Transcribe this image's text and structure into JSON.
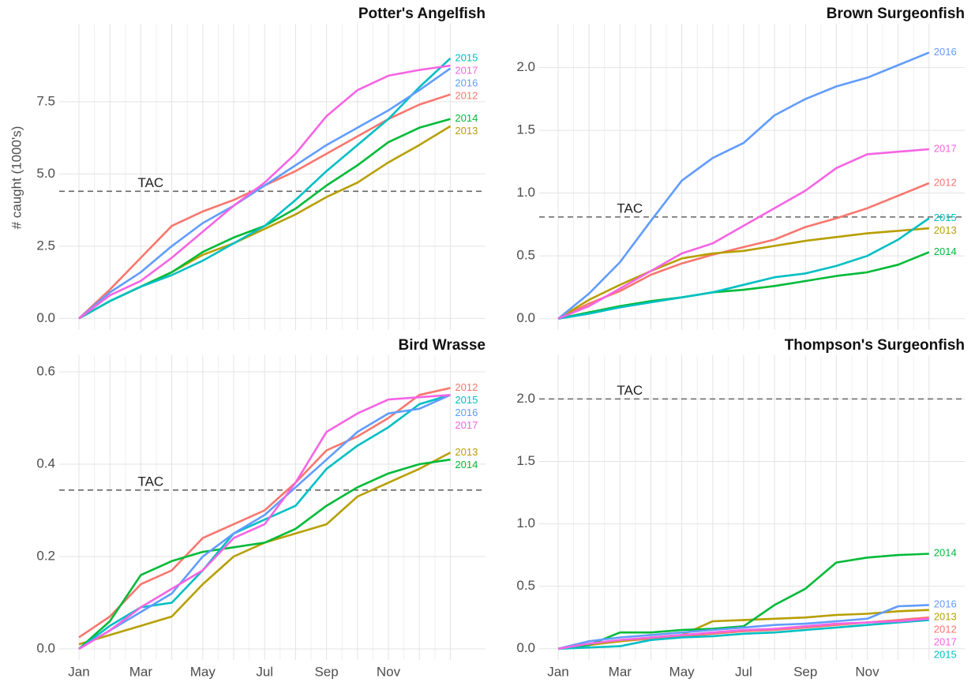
{
  "chart_data": [
    {
      "type": "line",
      "title": "Potter's Angelfish",
      "y_label": "# caught (1000's)",
      "categories": [
        null,
        null,
        null,
        null,
        null,
        null,
        null,
        null,
        null,
        null,
        null,
        null,
        null
      ],
      "ylim": [
        -0.4,
        10.2
      ],
      "yticks": [
        {
          "value": 0,
          "label": "0.0"
        },
        {
          "value": 2.5,
          "label": "2.5"
        },
        {
          "value": 5,
          "label": "5.0"
        },
        {
          "value": 7.5,
          "label": "7.5"
        }
      ],
      "grid": true,
      "tac": {
        "label": "TAC",
        "value": 4.4
      },
      "series": [
        {
          "name": "2012",
          "color": "#F8766D",
          "values": [
            0,
            1.0,
            2.1,
            3.2,
            3.7,
            4.1,
            4.6,
            5.1,
            5.7,
            6.3,
            6.9,
            7.4,
            7.75
          ]
        },
        {
          "name": "2013",
          "color": "#B79F00",
          "values": [
            0,
            0.6,
            1.1,
            1.6,
            2.2,
            2.6,
            3.1,
            3.6,
            4.2,
            4.7,
            5.4,
            6.0,
            6.65
          ]
        },
        {
          "name": "2014",
          "color": "#00BA38",
          "values": [
            0,
            0.6,
            1.1,
            1.6,
            2.3,
            2.8,
            3.2,
            3.8,
            4.6,
            5.3,
            6.1,
            6.6,
            6.9
          ]
        },
        {
          "name": "2015",
          "color": "#00BFC4",
          "values": [
            0,
            0.6,
            1.1,
            1.5,
            2.0,
            2.6,
            3.2,
            4.1,
            5.1,
            6.0,
            6.9,
            8.0,
            9.0
          ]
        },
        {
          "name": "2016",
          "color": "#619CFF",
          "values": [
            0,
            0.9,
            1.6,
            2.5,
            3.3,
            3.9,
            4.6,
            5.3,
            6.0,
            6.6,
            7.2,
            7.9,
            8.65
          ]
        },
        {
          "name": "2017",
          "color": "#F564E3",
          "values": [
            0,
            0.8,
            1.3,
            2.1,
            3.0,
            3.9,
            4.7,
            5.7,
            7.0,
            7.9,
            8.4,
            8.6,
            8.75
          ]
        }
      ]
    },
    {
      "type": "line",
      "title": "Brown Surgeonfish",
      "categories": [
        null,
        null,
        null,
        null,
        null,
        null,
        null,
        null,
        null,
        null,
        null,
        null,
        null
      ],
      "ylim": [
        -0.09,
        2.35
      ],
      "yticks": [
        {
          "value": 0,
          "label": "0.0"
        },
        {
          "value": 0.5,
          "label": "0.5"
        },
        {
          "value": 1,
          "label": "1.0"
        },
        {
          "value": 1.5,
          "label": "1.5"
        },
        {
          "value": 2,
          "label": "2.0"
        }
      ],
      "grid": true,
      "tac": {
        "label": "TAC",
        "value": 0.81
      },
      "series": [
        {
          "name": "2012",
          "color": "#F8766D",
          "values": [
            0,
            0.12,
            0.22,
            0.35,
            0.44,
            0.51,
            0.57,
            0.63,
            0.73,
            0.8,
            0.88,
            0.98,
            1.08
          ]
        },
        {
          "name": "2013",
          "color": "#B79F00",
          "values": [
            0,
            0.15,
            0.27,
            0.38,
            0.48,
            0.52,
            0.54,
            0.58,
            0.62,
            0.65,
            0.68,
            0.7,
            0.72
          ]
        },
        {
          "name": "2014",
          "color": "#00BA38",
          "values": [
            0,
            0.05,
            0.1,
            0.14,
            0.17,
            0.21,
            0.23,
            0.26,
            0.3,
            0.34,
            0.37,
            0.43,
            0.53
          ]
        },
        {
          "name": "2015",
          "color": "#00BFC4",
          "values": [
            0,
            0.04,
            0.09,
            0.13,
            0.17,
            0.21,
            0.27,
            0.33,
            0.36,
            0.42,
            0.5,
            0.63,
            0.8
          ]
        },
        {
          "name": "2016",
          "color": "#619CFF",
          "values": [
            0,
            0.2,
            0.45,
            0.78,
            1.1,
            1.28,
            1.4,
            1.62,
            1.75,
            1.85,
            1.92,
            2.02,
            2.12
          ]
        },
        {
          "name": "2017",
          "color": "#F564E3",
          "values": [
            0,
            0.1,
            0.24,
            0.38,
            0.52,
            0.6,
            0.74,
            0.88,
            1.02,
            1.2,
            1.31,
            1.33,
            1.35
          ]
        }
      ]
    },
    {
      "type": "line",
      "title": "Bird Wrasse",
      "categories": [
        "Jan",
        null,
        "Mar",
        null,
        "May",
        null,
        "Jul",
        null,
        "Sep",
        null,
        "Nov",
        null,
        null
      ],
      "ylim": [
        -0.024,
        0.636
      ],
      "yticks": [
        {
          "value": 0,
          "label": "0.0"
        },
        {
          "value": 0.2,
          "label": "0.2"
        },
        {
          "value": 0.4,
          "label": "0.4"
        },
        {
          "value": 0.6,
          "label": "0.6"
        }
      ],
      "grid": true,
      "tac": {
        "label": "TAC",
        "value": 0.344
      },
      "series": [
        {
          "name": "2012",
          "color": "#F8766D",
          "values": [
            0.025,
            0.07,
            0.14,
            0.17,
            0.24,
            0.27,
            0.3,
            0.36,
            0.43,
            0.46,
            0.5,
            0.55,
            0.565
          ]
        },
        {
          "name": "2013",
          "color": "#B79F00",
          "values": [
            0.01,
            0.03,
            0.05,
            0.07,
            0.14,
            0.2,
            0.23,
            0.25,
            0.27,
            0.33,
            0.36,
            0.39,
            0.425
          ]
        },
        {
          "name": "2014",
          "color": "#00BA38",
          "values": [
            0,
            0.06,
            0.16,
            0.19,
            0.21,
            0.22,
            0.23,
            0.26,
            0.31,
            0.35,
            0.38,
            0.4,
            0.41
          ]
        },
        {
          "name": "2015",
          "color": "#00BFC4",
          "values": [
            0,
            0.05,
            0.09,
            0.1,
            0.17,
            0.25,
            0.28,
            0.31,
            0.39,
            0.44,
            0.48,
            0.53,
            0.55
          ]
        },
        {
          "name": "2016",
          "color": "#619CFF",
          "values": [
            0,
            0.04,
            0.08,
            0.12,
            0.2,
            0.25,
            0.29,
            0.35,
            0.41,
            0.47,
            0.51,
            0.52,
            0.55
          ]
        },
        {
          "name": "2017",
          "color": "#F564E3",
          "values": [
            0,
            0.04,
            0.09,
            0.13,
            0.17,
            0.24,
            0.27,
            0.36,
            0.47,
            0.51,
            0.54,
            0.545,
            0.55
          ]
        }
      ]
    },
    {
      "type": "line",
      "title": "Thompson's Surgeonfish",
      "categories": [
        "Jan",
        null,
        "Mar",
        null,
        "May",
        null,
        "Jul",
        null,
        "Sep",
        null,
        "Nov",
        null,
        null
      ],
      "ylim": [
        -0.09,
        2.35
      ],
      "yticks": [
        {
          "value": 0,
          "label": "0.0"
        },
        {
          "value": 0.5,
          "label": "0.5"
        },
        {
          "value": 1,
          "label": "1.0"
        },
        {
          "value": 1.5,
          "label": "1.5"
        },
        {
          "value": 2,
          "label": "2.0"
        }
      ],
      "grid": true,
      "tac": {
        "label": "TAC",
        "value": 2.0
      },
      "series": [
        {
          "name": "2012",
          "color": "#F8766D",
          "values": [
            0,
            0.03,
            0.06,
            0.08,
            0.1,
            0.12,
            0.14,
            0.15,
            0.17,
            0.19,
            0.21,
            0.23,
            0.25
          ]
        },
        {
          "name": "2013",
          "color": "#B79F00",
          "values": [
            0,
            0.03,
            0.06,
            0.09,
            0.11,
            0.22,
            0.23,
            0.24,
            0.25,
            0.27,
            0.28,
            0.3,
            0.31
          ]
        },
        {
          "name": "2014",
          "color": "#00BA38",
          "values": [
            0,
            0.03,
            0.13,
            0.13,
            0.15,
            0.16,
            0.18,
            0.35,
            0.48,
            0.69,
            0.73,
            0.75,
            0.76
          ]
        },
        {
          "name": "2015",
          "color": "#00BFC4",
          "values": [
            0,
            0.01,
            0.02,
            0.07,
            0.09,
            0.1,
            0.12,
            0.13,
            0.15,
            0.17,
            0.19,
            0.21,
            0.23
          ]
        },
        {
          "name": "2016",
          "color": "#619CFF",
          "values": [
            0,
            0.06,
            0.09,
            0.11,
            0.13,
            0.15,
            0.17,
            0.19,
            0.2,
            0.22,
            0.24,
            0.34,
            0.35
          ]
        },
        {
          "name": "2017",
          "color": "#F564E3",
          "values": [
            0,
            0.04,
            0.07,
            0.09,
            0.11,
            0.13,
            0.15,
            0.16,
            0.18,
            0.2,
            0.21,
            0.22,
            0.24
          ]
        }
      ]
    }
  ]
}
